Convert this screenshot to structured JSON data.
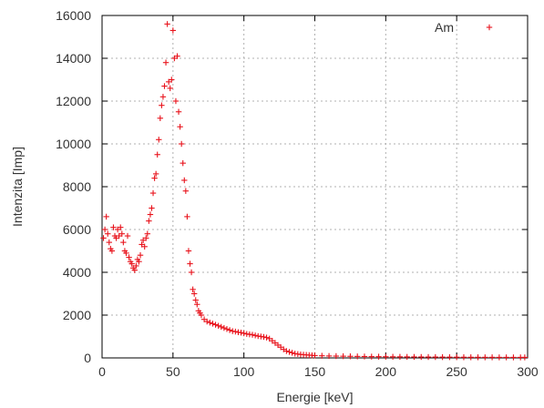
{
  "chart_data": {
    "type": "scatter",
    "title": "",
    "xlabel": "Energie [keV]",
    "ylabel": "Intenzita [Imp]",
    "xlim": [
      0,
      300
    ],
    "ylim": [
      0,
      16000
    ],
    "x_ticks": [
      "0",
      "50",
      "100",
      "150",
      "200",
      "250",
      "300"
    ],
    "y_ticks": [
      "0",
      "2000",
      "4000",
      "6000",
      "8000",
      "10000",
      "12000",
      "14000",
      "16000"
    ],
    "grid": true,
    "legend_position": "top-right",
    "series": [
      {
        "name": "Am",
        "color": "#e8121b",
        "marker": "+",
        "x": [
          1,
          2,
          3,
          4,
          5,
          6,
          7,
          8,
          9,
          10,
          11,
          12,
          13,
          14,
          15,
          16,
          17,
          18,
          19,
          20,
          21,
          22,
          23,
          24,
          25,
          26,
          27,
          28,
          29,
          30,
          31,
          32,
          33,
          34,
          35,
          36,
          37,
          38,
          39,
          40,
          41,
          42,
          43,
          44,
          45,
          46,
          47,
          48,
          49,
          50,
          51,
          52,
          53,
          54,
          55,
          56,
          57,
          58,
          59,
          60,
          61,
          62,
          63,
          64,
          65,
          66,
          67,
          68,
          69,
          70,
          72,
          74,
          76,
          78,
          80,
          82,
          84,
          86,
          88,
          90,
          92,
          94,
          96,
          98,
          100,
          102,
          104,
          106,
          108,
          110,
          112,
          114,
          116,
          118,
          120,
          122,
          124,
          126,
          128,
          130,
          132,
          134,
          136,
          138,
          140,
          142,
          144,
          146,
          148,
          150,
          155,
          160,
          165,
          170,
          175,
          180,
          185,
          190,
          195,
          200,
          205,
          210,
          215,
          220,
          225,
          230,
          235,
          240,
          245,
          250,
          255,
          260,
          265,
          270,
          275,
          280,
          285,
          290,
          295,
          298
        ],
        "y": [
          5600,
          6000,
          6600,
          5800,
          5400,
          5100,
          5000,
          6100,
          5700,
          5600,
          6000,
          5700,
          6100,
          5800,
          5400,
          5000,
          4900,
          5700,
          4700,
          4500,
          4400,
          4200,
          4100,
          4300,
          4600,
          4500,
          4800,
          5300,
          5500,
          5200,
          5600,
          5800,
          6400,
          6700,
          7000,
          7700,
          8400,
          8600,
          9500,
          10200,
          11200,
          11800,
          12200,
          12700,
          13800,
          15600,
          12900,
          12600,
          13000,
          15300,
          14000,
          12000,
          14100,
          11500,
          10800,
          10000,
          9100,
          8300,
          7800,
          6600,
          5000,
          4400,
          4000,
          3200,
          3000,
          2700,
          2500,
          2200,
          2100,
          2000,
          1800,
          1700,
          1650,
          1600,
          1550,
          1500,
          1450,
          1400,
          1350,
          1300,
          1250,
          1230,
          1200,
          1180,
          1150,
          1120,
          1100,
          1080,
          1050,
          1020,
          1000,
          980,
          950,
          900,
          800,
          700,
          600,
          500,
          400,
          320,
          280,
          240,
          200,
          180,
          160,
          150,
          140,
          130,
          120,
          110,
          100,
          90,
          85,
          80,
          75,
          70,
          65,
          60,
          58,
          55,
          52,
          50,
          48,
          46,
          44,
          42,
          40,
          38,
          36,
          34,
          32,
          30,
          30,
          28,
          28,
          26,
          26,
          25,
          25,
          25
        ]
      }
    ]
  }
}
